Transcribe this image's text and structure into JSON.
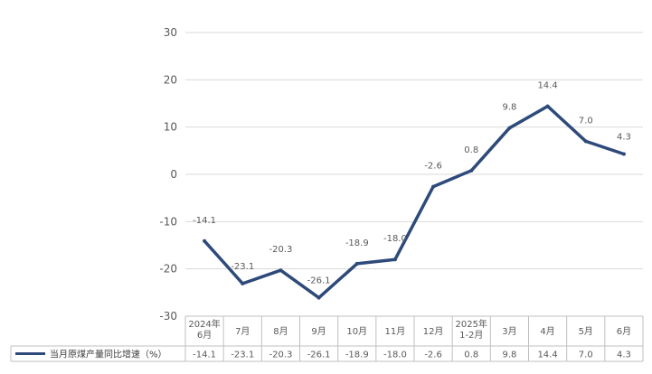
{
  "chart_data": {
    "type": "line",
    "categories": [
      "2024年6月",
      "7月",
      "8月",
      "9月",
      "10月",
      "11月",
      "12月",
      "2025年1-2月",
      "3月",
      "4月",
      "5月",
      "6月"
    ],
    "category_lines": [
      [
        "2024年",
        "6月"
      ],
      [
        "7月"
      ],
      [
        "8月"
      ],
      [
        "9月"
      ],
      [
        "10月"
      ],
      [
        "11月"
      ],
      [
        "12月"
      ],
      [
        "2025年",
        "1-2月"
      ],
      [
        "3月"
      ],
      [
        "4月"
      ],
      [
        "5月"
      ],
      [
        "6月"
      ]
    ],
    "series": [
      {
        "name": "当月原煤产量同比增速（%）",
        "values": [
          -14.1,
          -23.1,
          -20.3,
          -26.1,
          -18.9,
          -18.0,
          -2.6,
          0.8,
          9.8,
          14.4,
          7.0,
          4.3
        ],
        "labels": [
          "-14.1",
          "-23.1",
          "-20.3",
          "-26.1",
          "-18.9",
          "-18.0",
          "-2.6",
          "0.8",
          "9.8",
          "14.4",
          "7.0",
          "4.3"
        ],
        "color": "#2e4a7a"
      }
    ],
    "yticks": [
      30,
      20,
      10,
      0,
      -10,
      -20,
      -30
    ],
    "ylim": [
      -30,
      30
    ],
    "grid": true,
    "legend": "data-table-left",
    "title": "",
    "xlabel": "",
    "ylabel": ""
  }
}
